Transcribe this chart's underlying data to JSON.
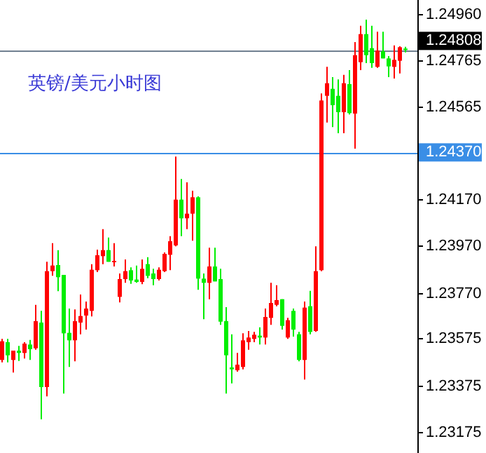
{
  "chart_data": {
    "type": "candlestick",
    "title": "英镑/美元小时图",
    "categories": [
      null,
      null,
      null,
      null,
      null,
      null,
      null,
      null,
      null,
      null,
      null,
      null,
      null,
      null,
      null,
      null,
      null,
      null,
      null,
      null,
      null,
      null,
      null,
      null,
      null,
      null,
      null,
      null,
      null,
      null,
      null,
      null,
      null,
      null,
      null,
      null,
      null,
      null,
      null,
      null,
      null,
      null,
      null,
      null,
      null,
      null,
      null,
      null,
      null,
      null,
      null,
      null,
      null,
      null,
      null,
      null,
      null,
      null,
      null,
      null,
      null,
      null,
      null,
      null,
      null,
      null,
      null,
      null,
      null,
      null,
      null,
      null,
      null
    ],
    "ohlc": [
      [
        1.23482,
        1.23572,
        1.23472,
        1.23562
      ],
      [
        1.23558,
        1.23572,
        1.23472,
        1.23502
      ],
      [
        1.23482,
        1.23522,
        1.23428,
        1.23522
      ],
      [
        1.23522,
        1.23542,
        1.23478,
        1.23512
      ],
      [
        1.23512,
        1.23558,
        1.23488,
        1.23552
      ],
      [
        1.23548,
        1.23568,
        1.23482,
        1.23528
      ],
      [
        1.23532,
        1.23718,
        1.23526,
        1.23648
      ],
      [
        1.23642,
        1.23692,
        1.23228,
        1.23366
      ],
      [
        1.23366,
        1.23902,
        1.23326,
        1.23862
      ],
      [
        1.23862,
        1.23982,
        1.23842,
        1.23886
      ],
      [
        1.23888,
        1.23952,
        1.23776,
        1.23836
      ],
      [
        1.23846,
        1.23846,
        1.23338,
        1.23596
      ],
      [
        1.23598,
        1.23702,
        1.23452,
        1.23566
      ],
      [
        1.23566,
        1.23698,
        1.23476,
        1.23648
      ],
      [
        1.23642,
        1.23762,
        1.23592,
        1.2367
      ],
      [
        1.23672,
        1.23732,
        1.23612,
        1.23702
      ],
      [
        1.23692,
        1.23892,
        1.23668,
        1.23868
      ],
      [
        1.23866,
        1.23954,
        1.23858,
        1.2393
      ],
      [
        1.23926,
        1.24042,
        1.23892,
        1.23952
      ],
      [
        1.23952,
        1.24006,
        1.23902,
        1.23902
      ],
      [
        1.23902,
        1.23982,
        1.23882,
        1.23906
      ],
      [
        1.23752,
        1.23852,
        1.23728,
        1.23828
      ],
      [
        1.23828,
        1.23912,
        1.23812,
        1.23862
      ],
      [
        1.23866,
        1.23878,
        1.23808,
        1.23822
      ],
      [
        1.23826,
        1.23886,
        1.23812,
        1.23816
      ],
      [
        1.23816,
        1.23912,
        1.23806,
        1.23872
      ],
      [
        1.23892,
        1.23922,
        1.23832,
        1.23842
      ],
      [
        1.23852,
        1.23872,
        1.23802,
        1.23828
      ],
      [
        1.23828,
        1.23878,
        1.23822,
        1.23868
      ],
      [
        1.23862,
        1.23942,
        1.23858,
        1.23936
      ],
      [
        1.23932,
        1.24012,
        1.23866,
        1.2399
      ],
      [
        1.23972,
        1.24352,
        1.23968,
        1.24168
      ],
      [
        1.24168,
        1.24256,
        1.24012,
        1.24088
      ],
      [
        1.24088,
        1.24242,
        1.24042,
        1.24108
      ],
      [
        1.24108,
        1.24206,
        1.23992,
        1.24178
      ],
      [
        1.24178,
        1.24182,
        1.23782,
        1.2383
      ],
      [
        1.2383,
        1.23852,
        1.23656,
        1.23812
      ],
      [
        1.23812,
        1.23962,
        1.23742,
        1.23882
      ],
      [
        1.23882,
        1.23962,
        1.23818,
        1.23818
      ],
      [
        1.23828,
        1.23872,
        1.23632,
        1.23646
      ],
      [
        1.23648,
        1.23708,
        1.23338,
        1.23502
      ],
      [
        1.2345,
        1.23592,
        1.23382,
        1.23442
      ],
      [
        1.23438,
        1.23512,
        1.23432,
        1.23462
      ],
      [
        1.23452,
        1.23596,
        1.23442,
        1.23566
      ],
      [
        1.23558,
        1.23606,
        1.23526,
        1.23578
      ],
      [
        1.23572,
        1.23602,
        1.23558,
        1.2359
      ],
      [
        1.23586,
        1.23622,
        1.23548,
        1.23578
      ],
      [
        1.23578,
        1.23702,
        1.23548,
        1.23666
      ],
      [
        1.23662,
        1.23812,
        1.23632,
        1.23726
      ],
      [
        1.23718,
        1.23802,
        1.23712,
        1.23738
      ],
      [
        1.23742,
        1.23742,
        1.23612,
        1.23628
      ],
      [
        1.23578,
        1.23662,
        1.23572,
        1.23652
      ],
      [
        1.23692,
        1.23702,
        1.23582,
        1.23612
      ],
      [
        1.23592,
        1.23602,
        1.23476,
        1.23482
      ],
      [
        1.23482,
        1.23732,
        1.23398,
        1.23706
      ],
      [
        1.23712,
        1.23778,
        1.23592,
        1.23602
      ],
      [
        1.23606,
        1.23968,
        1.23602,
        1.23862
      ],
      [
        1.23866,
        1.24622,
        1.23862,
        1.24592
      ],
      [
        1.24612,
        1.24736,
        1.24498,
        1.24666
      ],
      [
        1.24642,
        1.24692,
        1.24478,
        1.24572
      ],
      [
        1.24612,
        1.24682,
        1.24452,
        1.24542
      ],
      [
        1.24542,
        1.24702,
        1.24452,
        1.24666
      ],
      [
        1.24662,
        1.24722,
        1.24532,
        1.24538
      ],
      [
        1.24536,
        1.24842,
        1.24386,
        1.24786
      ],
      [
        1.24756,
        1.24912,
        1.24722,
        1.24876
      ],
      [
        1.24876,
        1.24938,
        1.24752,
        1.24786
      ],
      [
        1.24816,
        1.24912,
        1.24732,
        1.24752
      ],
      [
        1.24736,
        1.24886,
        1.24732,
        1.24806
      ],
      [
        1.24802,
        1.24886,
        1.24772,
        1.24772
      ],
      [
        1.24772,
        1.24782,
        1.24692,
        1.24738
      ],
      [
        1.24736,
        1.24828,
        1.24686,
        1.24766
      ],
      [
        1.24762,
        1.24824,
        1.24708,
        1.2482
      ],
      [
        1.24814,
        1.24822,
        1.24798,
        1.24808
      ]
    ],
    "colors": [
      "#ff0000",
      "#00ee00",
      "#ff0000",
      "#00ee00",
      "#ff0000",
      "#00ee00",
      "#ff0000",
      "#00ee00",
      "#ff0000",
      "#ff0000",
      "#00ee00",
      "#00ee00",
      "#00ee00",
      "#ff0000",
      "#ff0000",
      "#ff0000",
      "#ff0000",
      "#ff0000",
      "#ff0000",
      "#00ee00",
      "#ff0000",
      "#ff0000",
      "#ff0000",
      "#00ee00",
      "#00ee00",
      "#ff0000",
      "#00ee00",
      "#00ee00",
      "#ff0000",
      "#ff0000",
      "#ff0000",
      "#ff0000",
      "#00ee00",
      "#ff0000",
      "#ff0000",
      "#00ee00",
      "#00ee00",
      "#ff0000",
      "#00ee00",
      "#00ee00",
      "#00ee00",
      "#00ee00",
      "#ff0000",
      "#ff0000",
      "#ff0000",
      "#ff0000",
      "#00ee00",
      "#ff0000",
      "#ff0000",
      "#ff0000",
      "#00ee00",
      "#ff0000",
      "#00ee00",
      "#00ee00",
      "#ff0000",
      "#00ee00",
      "#ff0000",
      "#ff0000",
      "#ff0000",
      "#00ee00",
      "#00ee00",
      "#ff0000",
      "#00ee00",
      "#ff0000",
      "#ff0000",
      "#00ee00",
      "#00ee00",
      "#ff0000",
      "#00ee00",
      "#00ee00",
      "#ff0000",
      "#ff0000",
      "#00ee00"
    ],
    "ylim": [
      1.23084,
      1.25022
    ],
    "yticks": [
      {
        "value": 1.2496,
        "label": "1.24960"
      },
      {
        "value": 1.24765,
        "label": "1.24765"
      },
      {
        "value": 1.24565,
        "label": "1.24565"
      },
      {
        "value": 1.2417,
        "label": "1.24170"
      },
      {
        "value": 1.2397,
        "label": "1.23970"
      },
      {
        "value": 1.2377,
        "label": "1.23770"
      },
      {
        "value": 1.23575,
        "label": "1.23575"
      },
      {
        "value": 1.23375,
        "label": "1.23375"
      },
      {
        "value": 1.23175,
        "label": "1.23175"
      }
    ],
    "ref_lines": [
      {
        "axis": "y",
        "value": 1.24808,
        "label": "1.24808",
        "color": "#708090"
      },
      {
        "axis": "y",
        "value": 1.2437,
        "label": "1.24370",
        "color": "#3a8ee6"
      }
    ],
    "tick_labels": "y"
  }
}
